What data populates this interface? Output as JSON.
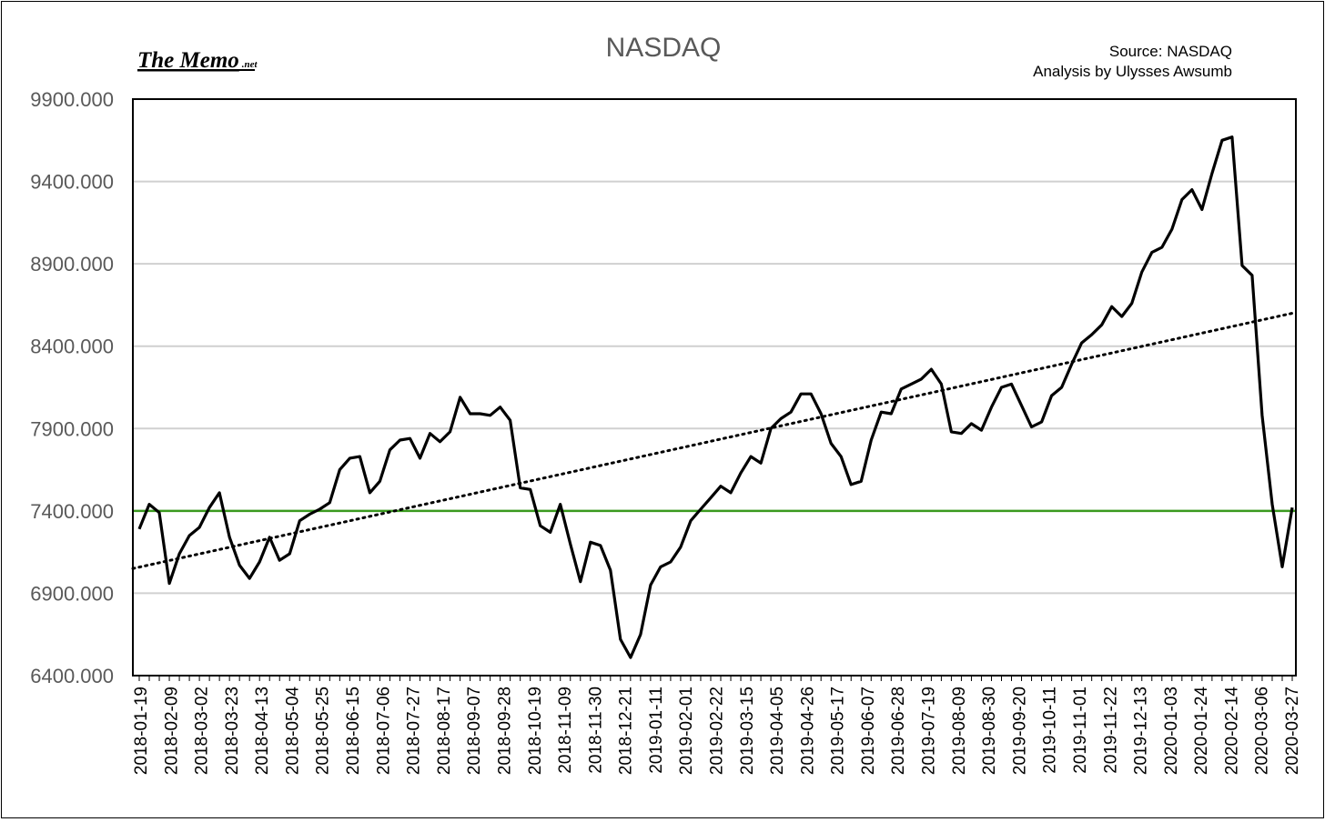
{
  "logo": {
    "main": "The Memo",
    "suffix": ".net"
  },
  "source_lines": [
    "Source: NASDAQ",
    "Analysis by Ulysses Awsumb"
  ],
  "colors": {
    "series": "#000000",
    "trend": "#000000",
    "reference": "#3a9a1f",
    "grid": "#d0d0d0"
  },
  "chart_data": {
    "type": "line",
    "title": "NASDAQ",
    "xlabel": "",
    "ylabel": "",
    "ylim": [
      6400,
      9900
    ],
    "yticks": [
      6400,
      6900,
      7400,
      7900,
      8400,
      8900,
      9400,
      9900
    ],
    "ytick_labels": [
      "6400.000",
      "6900.000",
      "7400.000",
      "7900.000",
      "8400.000",
      "8900.000",
      "9400.000",
      "9900.000"
    ],
    "xtick_labels": [
      "2018-01-19",
      "2018-02-09",
      "2018-03-02",
      "2018-03-23",
      "2018-04-13",
      "2018-05-04",
      "2018-05-25",
      "2018-06-15",
      "2018-07-06",
      "2018-07-27",
      "2018-08-17",
      "2018-09-07",
      "2018-09-28",
      "2018-10-19",
      "2018-11-09",
      "2018-11-30",
      "2018-12-21",
      "2019-01-11",
      "2019-02-01",
      "2019-02-22",
      "2019-03-15",
      "2019-04-05",
      "2019-04-26",
      "2019-05-17",
      "2019-06-07",
      "2019-06-28",
      "2019-07-19",
      "2019-08-09",
      "2019-08-30",
      "2019-09-20",
      "2019-10-11",
      "2019-11-01",
      "2019-11-22",
      "2019-12-13",
      "2020-01-03",
      "2020-01-24",
      "2020-02-14",
      "2020-03-06",
      "2020-03-27"
    ],
    "grid": true,
    "legend": "none",
    "series": [
      {
        "kind": "weekly-close",
        "values": [
          7290,
          7440,
          7390,
          6960,
          7140,
          7250,
          7300,
          7420,
          7510,
          7240,
          7070,
          6990,
          7090,
          7240,
          7100,
          7140,
          7340,
          7380,
          7410,
          7450,
          7650,
          7720,
          7730,
          7510,
          7580,
          7770,
          7830,
          7840,
          7720,
          7870,
          7820,
          7880,
          8090,
          7990,
          7990,
          7980,
          8030,
          7950,
          7540,
          7530,
          7310,
          7270,
          7440,
          7200,
          6970,
          7210,
          7190,
          7040,
          6620,
          6510,
          6650,
          6950,
          7060,
          7090,
          7180,
          7340,
          7410,
          7480,
          7550,
          7510,
          7630,
          7730,
          7690,
          7900,
          7960,
          8000,
          8110,
          8110,
          7990,
          7810,
          7730,
          7560,
          7580,
          7830,
          8000,
          7990,
          8140,
          8170,
          8200,
          8260,
          8170,
          7880,
          7870,
          7930,
          7890,
          8030,
          8150,
          8170,
          8040,
          7910,
          7940,
          8100,
          8150,
          8290,
          8420,
          8470,
          8530,
          8640,
          8580,
          8660,
          8850,
          8970,
          9000,
          9110,
          9290,
          9350,
          9230,
          9450,
          9650,
          9670,
          8890,
          8830,
          7980,
          7440,
          7060,
          7420
        ]
      },
      {
        "kind": "linear-trend",
        "values": [
          7050,
          8600
        ]
      },
      {
        "kind": "reference",
        "values": [
          7400
        ]
      }
    ]
  }
}
